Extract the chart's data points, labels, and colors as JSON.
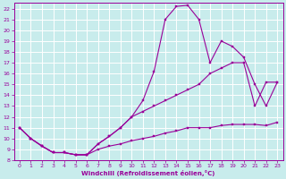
{
  "xlabel": "Windchill (Refroidissement éolien,°C)",
  "bg_color": "#c8ecec",
  "line_color": "#990099",
  "grid_color": "#ffffff",
  "xlim": [
    -0.5,
    23.5
  ],
  "ylim": [
    8,
    22.5
  ],
  "xticks": [
    0,
    1,
    2,
    3,
    4,
    5,
    6,
    7,
    8,
    9,
    10,
    11,
    12,
    13,
    14,
    15,
    16,
    17,
    18,
    19,
    20,
    21,
    22,
    23
  ],
  "yticks": [
    8,
    9,
    10,
    11,
    12,
    13,
    14,
    15,
    16,
    17,
    18,
    19,
    20,
    21,
    22
  ],
  "x": [
    0,
    1,
    2,
    3,
    4,
    5,
    6,
    7,
    8,
    9,
    10,
    11,
    12,
    13,
    14,
    15,
    16,
    17,
    18,
    19,
    20,
    21,
    22,
    23
  ],
  "line_peak": [
    11.0,
    10.0,
    9.3,
    8.7,
    8.7,
    8.5,
    8.5,
    9.5,
    10.2,
    11.0,
    12.0,
    13.5,
    16.2,
    21.0,
    22.2,
    22.3,
    21.0,
    17.0,
    19.0,
    18.5,
    17.5,
    15.0,
    13.0,
    15.2
  ],
  "line_mid": [
    11.0,
    10.0,
    9.3,
    8.7,
    8.7,
    8.5,
    8.5,
    9.5,
    10.2,
    11.0,
    12.0,
    12.5,
    13.0,
    13.5,
    14.0,
    14.5,
    15.0,
    16.0,
    16.5,
    17.0,
    17.0,
    13.0,
    15.2,
    15.2
  ],
  "line_flat": [
    11.0,
    10.0,
    9.3,
    8.7,
    8.7,
    8.5,
    8.5,
    9.0,
    9.3,
    9.5,
    9.8,
    10.0,
    10.2,
    10.5,
    10.7,
    11.0,
    11.0,
    11.0,
    11.2,
    11.3,
    11.3,
    11.3,
    11.2,
    11.5
  ]
}
